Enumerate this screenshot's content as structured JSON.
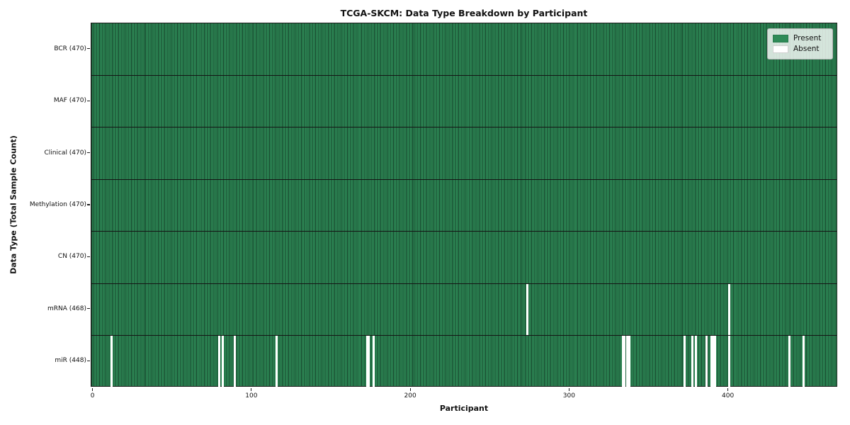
{
  "title": "TCGA-SKCM: Data Type Breakdown by Participant",
  "xlabel": "Participant",
  "ylabel": "Data Type (Total Sample Count)",
  "legend": {
    "present_label": "Present",
    "absent_label": "Absent"
  },
  "colors": {
    "present": "#2e8b57",
    "absent": "#ffffff",
    "bar_edge": "#16432b",
    "row_divider": "#141414",
    "axis": "#1a1a1a"
  },
  "chart_data": {
    "type": "heatmap",
    "title": "TCGA-SKCM: Data Type Breakdown by Participant",
    "xlabel": "Participant",
    "ylabel": "Data Type (Total Sample Count)",
    "n_participants": 470,
    "x_range": [
      0,
      470
    ],
    "x_ticks": [
      0,
      100,
      200,
      300,
      400
    ],
    "legend_entries": [
      "Present",
      "Absent"
    ],
    "legend_position": "upper right",
    "grid": false,
    "rows": [
      {
        "label": "BCR (470)",
        "data_type": "BCR",
        "present_count": 470,
        "absent_count": 0,
        "absent_participants": []
      },
      {
        "label": "MAF (470)",
        "data_type": "MAF",
        "present_count": 470,
        "absent_count": 0,
        "absent_participants": []
      },
      {
        "label": "Clinical (470)",
        "data_type": "Clinical",
        "present_count": 470,
        "absent_count": 0,
        "absent_participants": []
      },
      {
        "label": "Methylation (470)",
        "data_type": "Methylation",
        "present_count": 470,
        "absent_count": 0,
        "absent_participants": []
      },
      {
        "label": "CN (470)",
        "data_type": "CN",
        "present_count": 470,
        "absent_count": 0,
        "absent_participants": []
      },
      {
        "label": "mRNA (468)",
        "data_type": "mRNA",
        "present_count": 468,
        "absent_count": 2,
        "absent_participants": [
          274,
          401
        ]
      },
      {
        "label": "miR (448)",
        "data_type": "miR",
        "present_count": 448,
        "absent_count": 22,
        "absent_participants": [
          12,
          80,
          82,
          90,
          116,
          173,
          174,
          177,
          334,
          335,
          337,
          338,
          373,
          378,
          380,
          387,
          390,
          391,
          392,
          401,
          439,
          448
        ]
      }
    ]
  }
}
